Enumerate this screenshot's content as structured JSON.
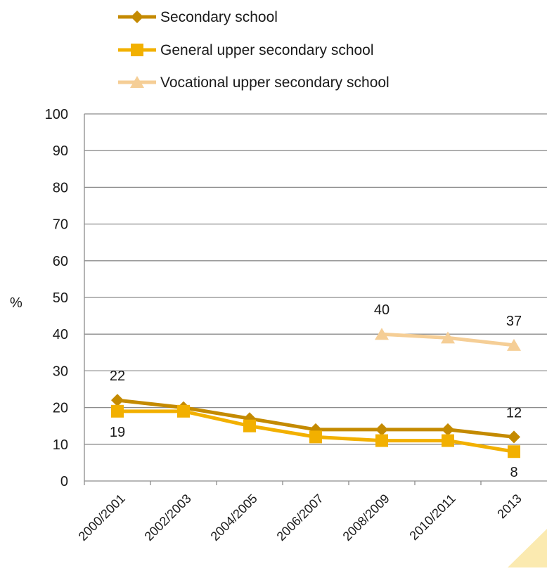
{
  "chart_data": {
    "type": "line",
    "categories": [
      "2000/2001",
      "2002/2003",
      "2004/2005",
      "2006/2007",
      "2008/2009",
      "2010/2011",
      "2013"
    ],
    "series": [
      {
        "name": "Secondary school",
        "values": [
          22,
          20,
          17,
          14,
          14,
          14,
          12
        ],
        "color": "#C48A00",
        "marker": "diamond"
      },
      {
        "name": "General upper secondary school",
        "values": [
          19,
          19,
          15,
          12,
          11,
          11,
          8
        ],
        "color": "#F2B000",
        "marker": "square"
      },
      {
        "name": "Vocational upper secondary school",
        "values": [
          null,
          null,
          null,
          null,
          40,
          39,
          37
        ],
        "color": "#F5CE96",
        "marker": "triangle"
      }
    ],
    "ylabel": "%",
    "xlabel": "",
    "title": "",
    "ylim": [
      0,
      100
    ],
    "yticks": [
      0,
      10,
      20,
      30,
      40,
      50,
      60,
      70,
      80,
      90,
      100
    ],
    "grid": true,
    "legend": "top",
    "data_labels": [
      {
        "series": 0,
        "index": 0,
        "text": "22",
        "placement": "above"
      },
      {
        "series": 1,
        "index": 0,
        "text": "19",
        "placement": "below"
      },
      {
        "series": 0,
        "index": 6,
        "text": "12",
        "placement": "above"
      },
      {
        "series": 1,
        "index": 6,
        "text": "8",
        "placement": "below"
      },
      {
        "series": 2,
        "index": 4,
        "text": "40",
        "placement": "above"
      },
      {
        "series": 2,
        "index": 6,
        "text": "37",
        "placement": "above"
      }
    ],
    "corner_accent_color": "#FBEAB0"
  }
}
